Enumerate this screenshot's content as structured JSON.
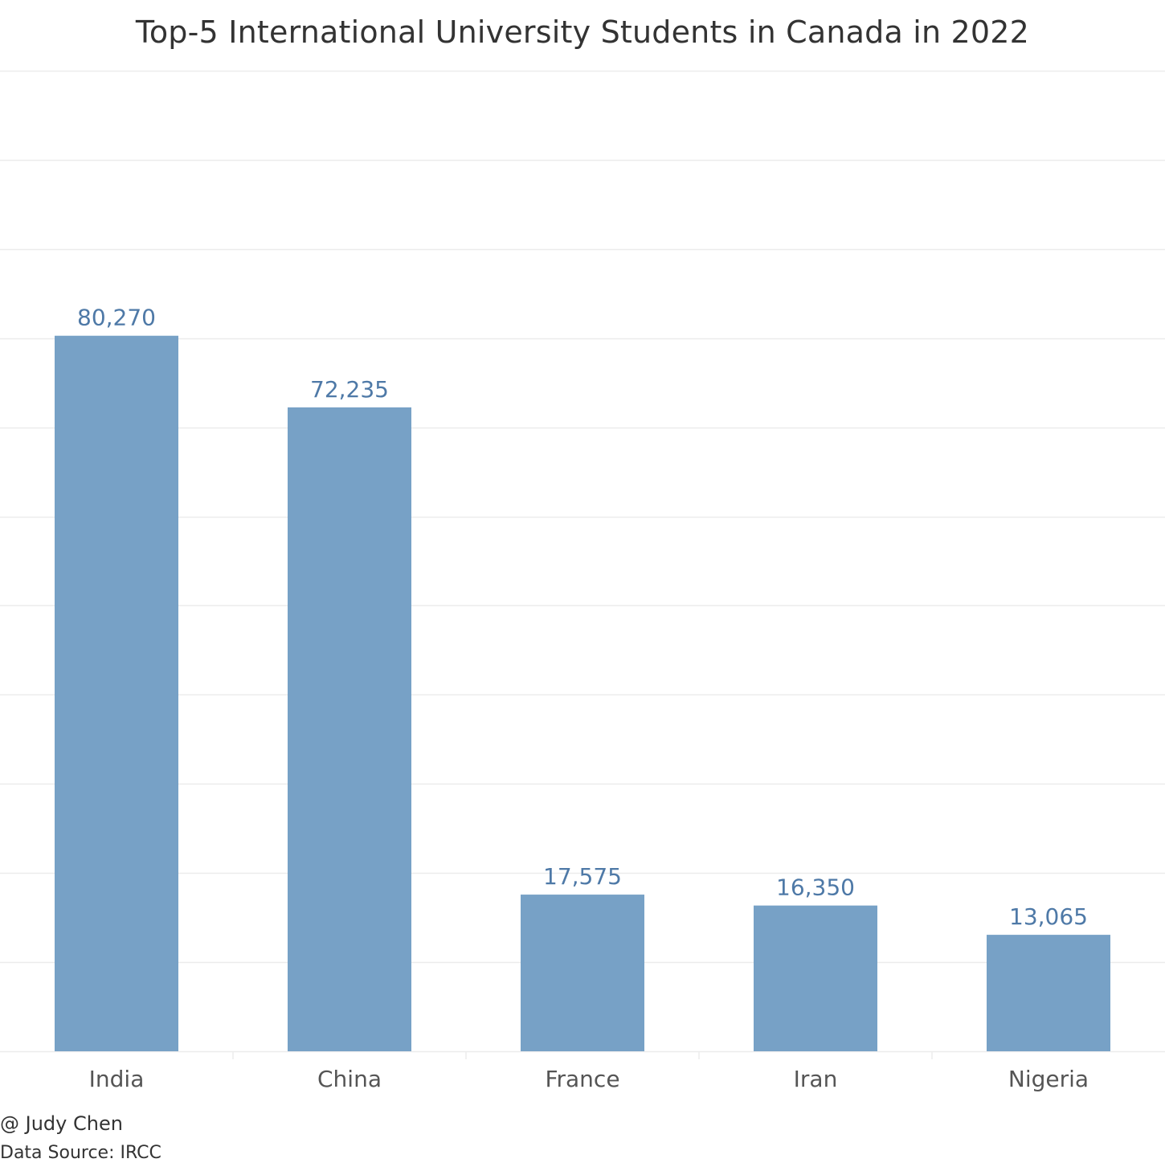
{
  "colors": {
    "bar": "#77a1c6",
    "data_label": "#4e79a7",
    "tick_label": "#555555",
    "gridline": "#ececec",
    "title": "#333333"
  },
  "chart_data": {
    "type": "bar",
    "title": "Top-5 International University Students in Canada in 2022",
    "categories": [
      "India",
      "China",
      "France",
      "Iran",
      "Nigeria"
    ],
    "values": [
      80270,
      72235,
      17575,
      16350,
      13065
    ],
    "data_labels": [
      "80,270",
      "72,235",
      "17,575",
      "16,350",
      "13,065"
    ],
    "xlabel": "",
    "ylabel": "",
    "ylim": [
      0,
      110000
    ],
    "y_gridline_step": 10000,
    "grid": true,
    "y_axis_tick_labels_shown": false,
    "legend": "none"
  },
  "footer": {
    "author": "@ Judy Chen",
    "source": "Data Source: IRCC"
  }
}
